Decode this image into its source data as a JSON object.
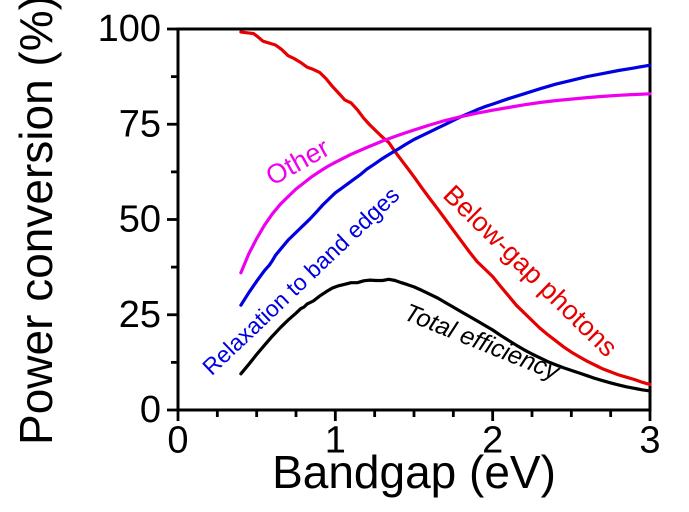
{
  "chart_data": {
    "type": "line",
    "title": "",
    "xlabel": "Bandgap (eV)",
    "ylabel": "Power conversion (%)",
    "xlim": [
      0,
      3
    ],
    "ylim": [
      0,
      100
    ],
    "x_ticks": [
      0,
      1,
      2,
      3
    ],
    "y_ticks": [
      0,
      25,
      50,
      75,
      100
    ],
    "x_minor_ticks": [
      0.25,
      0.5,
      0.75,
      1.25,
      1.5,
      1.75,
      2.25,
      2.5,
      2.75
    ],
    "y_minor_ticks": [
      12.5,
      37.5,
      62.5,
      87.5
    ],
    "grid": false,
    "legend": "inline-curve-labels",
    "frame": true,
    "series": [
      {
        "name": "Below-gap photons",
        "color": "#e60000",
        "points": [
          [
            0.4,
            99.2
          ],
          [
            0.44,
            99.0
          ],
          [
            0.48,
            98.8
          ],
          [
            0.5,
            98.2
          ],
          [
            0.54,
            96.8
          ],
          [
            0.58,
            96.3
          ],
          [
            0.62,
            95.8
          ],
          [
            0.66,
            94.6
          ],
          [
            0.7,
            93.0
          ],
          [
            0.74,
            92.2
          ],
          [
            0.78,
            91.2
          ],
          [
            0.82,
            90.0
          ],
          [
            0.86,
            89.4
          ],
          [
            0.9,
            88.6
          ],
          [
            0.94,
            87.0
          ],
          [
            0.98,
            85.0
          ],
          [
            1.02,
            83.2
          ],
          [
            1.06,
            81.4
          ],
          [
            1.1,
            80.6
          ],
          [
            1.14,
            78.8
          ],
          [
            1.18,
            76.6
          ],
          [
            1.22,
            74.8
          ],
          [
            1.26,
            73.2
          ],
          [
            1.3,
            71.6
          ],
          [
            1.34,
            70.2
          ],
          [
            1.38,
            67.8
          ],
          [
            1.42,
            65.6
          ],
          [
            1.46,
            63.4
          ],
          [
            1.5,
            61.2
          ],
          [
            1.55,
            58.3
          ],
          [
            1.6,
            55.5
          ],
          [
            1.65,
            52.8
          ],
          [
            1.7,
            50.0
          ],
          [
            1.75,
            47.2
          ],
          [
            1.8,
            44.4
          ],
          [
            1.85,
            41.6
          ],
          [
            1.9,
            39.0
          ],
          [
            1.95,
            37.0
          ],
          [
            2.0,
            35.0
          ],
          [
            2.05,
            32.5
          ],
          [
            2.1,
            30.0
          ],
          [
            2.15,
            27.5
          ],
          [
            2.2,
            25.5
          ],
          [
            2.25,
            23.5
          ],
          [
            2.3,
            21.5
          ],
          [
            2.35,
            19.8
          ],
          [
            2.4,
            18.2
          ],
          [
            2.45,
            16.6
          ],
          [
            2.5,
            15.2
          ],
          [
            2.55,
            14.0
          ],
          [
            2.6,
            12.8
          ],
          [
            2.65,
            11.8
          ],
          [
            2.7,
            10.8
          ],
          [
            2.75,
            10.0
          ],
          [
            2.8,
            9.2
          ],
          [
            2.85,
            8.6
          ],
          [
            2.9,
            8.0
          ],
          [
            2.95,
            7.3
          ],
          [
            3.0,
            6.7
          ]
        ]
      },
      {
        "name": "Relaxation to band edges",
        "color": "#0000e0",
        "points": [
          [
            0.4,
            27.5
          ],
          [
            0.45,
            30.8
          ],
          [
            0.5,
            33.8
          ],
          [
            0.55,
            36.6
          ],
          [
            0.58,
            38.0
          ],
          [
            0.6,
            39.2
          ],
          [
            0.62,
            40.6
          ],
          [
            0.66,
            42.6
          ],
          [
            0.7,
            44.6
          ],
          [
            0.74,
            46.2
          ],
          [
            0.78,
            47.8
          ],
          [
            0.8,
            48.6
          ],
          [
            0.84,
            50.2
          ],
          [
            0.88,
            52.0
          ],
          [
            0.92,
            53.8
          ],
          [
            0.96,
            55.4
          ],
          [
            1.0,
            57.0
          ],
          [
            1.04,
            58.2
          ],
          [
            1.08,
            59.4
          ],
          [
            1.12,
            60.6
          ],
          [
            1.16,
            61.8
          ],
          [
            1.2,
            63.2
          ],
          [
            1.25,
            64.6
          ],
          [
            1.3,
            66.0
          ],
          [
            1.35,
            67.3
          ],
          [
            1.4,
            68.5
          ],
          [
            1.45,
            69.8
          ],
          [
            1.5,
            71.0
          ],
          [
            1.55,
            72.0
          ],
          [
            1.6,
            73.0
          ],
          [
            1.65,
            74.0
          ],
          [
            1.7,
            75.0
          ],
          [
            1.75,
            76.0
          ],
          [
            1.8,
            77.0
          ],
          [
            1.85,
            77.9
          ],
          [
            1.9,
            78.8
          ],
          [
            1.95,
            79.6
          ],
          [
            2.0,
            80.3
          ],
          [
            2.1,
            81.7
          ],
          [
            2.2,
            83.0
          ],
          [
            2.3,
            84.3
          ],
          [
            2.4,
            85.5
          ],
          [
            2.5,
            86.5
          ],
          [
            2.6,
            87.5
          ],
          [
            2.7,
            88.3
          ],
          [
            2.8,
            89.1
          ],
          [
            2.9,
            89.8
          ],
          [
            3.0,
            90.5
          ]
        ]
      },
      {
        "name": "Other",
        "color": "#ee00ee",
        "points": [
          [
            0.4,
            36.0
          ],
          [
            0.45,
            41.0
          ],
          [
            0.5,
            45.0
          ],
          [
            0.55,
            48.5
          ],
          [
            0.6,
            51.5
          ],
          [
            0.65,
            54.0
          ],
          [
            0.7,
            56.0
          ],
          [
            0.75,
            58.0
          ],
          [
            0.8,
            59.6
          ],
          [
            0.85,
            61.2
          ],
          [
            0.9,
            62.6
          ],
          [
            0.95,
            63.9
          ],
          [
            1.0,
            65.0
          ],
          [
            1.1,
            67.1
          ],
          [
            1.2,
            68.9
          ],
          [
            1.3,
            70.6
          ],
          [
            1.4,
            72.1
          ],
          [
            1.5,
            73.5
          ],
          [
            1.6,
            74.8
          ],
          [
            1.7,
            76.0
          ],
          [
            1.8,
            77.0
          ],
          [
            1.9,
            77.9
          ],
          [
            2.0,
            78.7
          ],
          [
            2.1,
            79.4
          ],
          [
            2.2,
            80.1
          ],
          [
            2.3,
            80.7
          ],
          [
            2.4,
            81.2
          ],
          [
            2.5,
            81.6
          ],
          [
            2.6,
            82.0
          ],
          [
            2.7,
            82.3
          ],
          [
            2.8,
            82.6
          ],
          [
            2.9,
            82.8
          ],
          [
            3.0,
            83.0
          ]
        ]
      },
      {
        "name": "Total efficiency",
        "color": "#000000",
        "points": [
          [
            0.4,
            9.5
          ],
          [
            0.45,
            12.0
          ],
          [
            0.5,
            14.6
          ],
          [
            0.55,
            17.0
          ],
          [
            0.6,
            19.4
          ],
          [
            0.65,
            21.6
          ],
          [
            0.7,
            23.6
          ],
          [
            0.75,
            25.4
          ],
          [
            0.78,
            26.6
          ],
          [
            0.8,
            27.0
          ],
          [
            0.82,
            27.8
          ],
          [
            0.86,
            28.6
          ],
          [
            0.9,
            29.9
          ],
          [
            0.94,
            31.0
          ],
          [
            0.98,
            32.0
          ],
          [
            1.02,
            32.6
          ],
          [
            1.06,
            33.0
          ],
          [
            1.1,
            33.4
          ],
          [
            1.14,
            33.4
          ],
          [
            1.18,
            33.9
          ],
          [
            1.22,
            34.1
          ],
          [
            1.26,
            34.0
          ],
          [
            1.3,
            34.0
          ],
          [
            1.34,
            34.3
          ],
          [
            1.38,
            34.0
          ],
          [
            1.42,
            33.4
          ],
          [
            1.46,
            32.9
          ],
          [
            1.5,
            32.3
          ],
          [
            1.55,
            31.4
          ],
          [
            1.6,
            30.4
          ],
          [
            1.65,
            29.4
          ],
          [
            1.7,
            28.2
          ],
          [
            1.75,
            27.0
          ],
          [
            1.8,
            25.8
          ],
          [
            1.85,
            24.6
          ],
          [
            1.9,
            23.4
          ],
          [
            1.95,
            22.2
          ],
          [
            2.0,
            21.0
          ],
          [
            2.05,
            19.6
          ],
          [
            2.1,
            18.3
          ],
          [
            2.15,
            17.0
          ],
          [
            2.2,
            15.8
          ],
          [
            2.25,
            14.7
          ],
          [
            2.3,
            13.7
          ],
          [
            2.35,
            12.7
          ],
          [
            2.4,
            11.9
          ],
          [
            2.45,
            11.1
          ],
          [
            2.5,
            10.4
          ],
          [
            2.55,
            9.7
          ],
          [
            2.6,
            9.0
          ],
          [
            2.65,
            8.3
          ],
          [
            2.7,
            7.7
          ],
          [
            2.75,
            7.1
          ],
          [
            2.8,
            6.6
          ],
          [
            2.85,
            6.1
          ],
          [
            2.9,
            5.7
          ],
          [
            2.95,
            5.3
          ],
          [
            3.0,
            5.0
          ]
        ]
      }
    ],
    "annotations": [
      {
        "text": "Other",
        "x": 0.76,
        "y": 65.1,
        "angle": -29,
        "color": "#ee00ee",
        "font_px": 27,
        "italic": false
      },
      {
        "text": "Relaxation to band edges",
        "x": 0.78,
        "y": 33.9,
        "angle": -43.5,
        "color": "#0000e0",
        "font_px": 23,
        "italic": false
      },
      {
        "text": "Below-gap photons",
        "x": 2.24,
        "y": 36.5,
        "angle": 44.5,
        "color": "#e60000",
        "font_px": 27,
        "italic": false
      },
      {
        "text": "Total efficiency",
        "x": 1.93,
        "y": 17.8,
        "angle": 22,
        "color": "#000000",
        "font_px": 25,
        "italic": true
      }
    ]
  }
}
